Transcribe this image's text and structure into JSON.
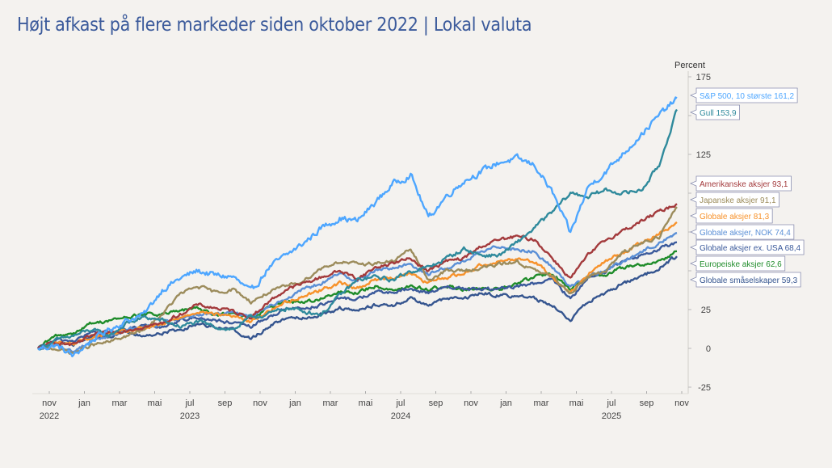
{
  "title": "Højt afkast på flere markeder siden oktober 2022 | Lokal valuta",
  "chart_data": {
    "type": "line",
    "title": "Højt afkast på flere markeder siden oktober 2022 | Lokal valuta",
    "xlabel": "",
    "ylabel": "Percent",
    "ylim": [
      -25,
      175
    ],
    "yticks_visible": [
      175,
      125,
      25,
      0,
      -25
    ],
    "yticks_all": [
      -25,
      0,
      25,
      50,
      75,
      100,
      125,
      150,
      175
    ],
    "x_tick_labels": [
      {
        "month": "nov",
        "year": "2022"
      },
      {
        "month": "jan",
        "year": ""
      },
      {
        "month": "mar",
        "year": ""
      },
      {
        "month": "mai",
        "year": ""
      },
      {
        "month": "jul",
        "year": "2023"
      },
      {
        "month": "sep",
        "year": ""
      },
      {
        "month": "nov",
        "year": ""
      },
      {
        "month": "jan",
        "year": ""
      },
      {
        "month": "mar",
        "year": ""
      },
      {
        "month": "mai",
        "year": ""
      },
      {
        "month": "jul",
        "year": "2024"
      },
      {
        "month": "sep",
        "year": ""
      },
      {
        "month": "nov",
        "year": ""
      },
      {
        "month": "jan",
        "year": ""
      },
      {
        "month": "mar",
        "year": ""
      },
      {
        "month": "mai",
        "year": ""
      },
      {
        "month": "jul",
        "year": "2025"
      },
      {
        "month": "sep",
        "year": ""
      },
      {
        "month": "nov",
        "year": ""
      }
    ],
    "x": [
      "2022-10",
      "2022-11",
      "2022-12",
      "2023-01",
      "2023-02",
      "2023-03",
      "2023-04",
      "2023-05",
      "2023-06",
      "2023-07",
      "2023-08",
      "2023-09",
      "2023-10",
      "2023-11",
      "2023-12",
      "2024-01",
      "2024-02",
      "2024-03",
      "2024-04",
      "2024-05",
      "2024-06",
      "2024-07",
      "2024-08",
      "2024-09",
      "2024-10",
      "2024-11",
      "2024-12",
      "2025-01",
      "2025-02",
      "2025-03",
      "2025-04",
      "2025-05",
      "2025-06",
      "2025-07",
      "2025-08",
      "2025-09",
      "2025-10"
    ],
    "series": [
      {
        "name": "S&P 500, 10 største",
        "end_value": "161,2",
        "color": "#4da6ff",
        "values": [
          0,
          2,
          -5,
          5,
          12,
          18,
          22,
          38,
          45,
          50,
          47,
          46,
          36,
          52,
          60,
          68,
          78,
          84,
          82,
          94,
          106,
          112,
          84,
          98,
          108,
          114,
          120,
          122,
          118,
          100,
          74,
          104,
          114,
          126,
          138,
          150,
          161.2
        ]
      },
      {
        "name": "Gull",
        "end_value": "153,9",
        "color": "#2f8a9c",
        "values": [
          0,
          5,
          8,
          12,
          8,
          16,
          20,
          18,
          14,
          17,
          14,
          12,
          20,
          22,
          26,
          24,
          22,
          34,
          44,
          46,
          44,
          50,
          52,
          58,
          64,
          60,
          60,
          68,
          78,
          88,
          100,
          98,
          102,
          100,
          102,
          118,
          153.9
        ]
      },
      {
        "name": "Amerikanske aksjer",
        "end_value": "93,1",
        "color": "#a33a3c",
        "values": [
          0,
          4,
          2,
          8,
          10,
          12,
          14,
          16,
          22,
          28,
          26,
          24,
          20,
          30,
          38,
          42,
          46,
          50,
          45,
          52,
          55,
          58,
          50,
          56,
          58,
          66,
          70,
          72,
          70,
          58,
          45,
          60,
          70,
          76,
          82,
          88,
          93.1
        ]
      },
      {
        "name": "Japanske aksjer",
        "end_value": "91,1",
        "color": "#9c8c5c",
        "values": [
          0,
          0,
          -3,
          2,
          4,
          8,
          12,
          22,
          35,
          40,
          36,
          38,
          30,
          36,
          40,
          44,
          52,
          56,
          54,
          55,
          56,
          64,
          44,
          50,
          50,
          52,
          54,
          56,
          50,
          46,
          36,
          46,
          50,
          62,
          68,
          72,
          91.1
        ]
      },
      {
        "name": "Globale aksjer",
        "end_value": "81,3",
        "color": "#f7922b",
        "values": [
          0,
          4,
          3,
          7,
          9,
          11,
          13,
          15,
          20,
          24,
          22,
          21,
          17,
          24,
          30,
          34,
          38,
          42,
          39,
          44,
          46,
          48,
          42,
          46,
          48,
          54,
          56,
          58,
          56,
          46,
          36,
          48,
          56,
          62,
          68,
          74,
          81.3
        ]
      },
      {
        "name": "Globale aksjer, NOK",
        "end_value": "74,4",
        "color": "#5a8fd6",
        "values": [
          0,
          2,
          -2,
          5,
          8,
          12,
          14,
          16,
          20,
          22,
          22,
          24,
          20,
          28,
          32,
          38,
          42,
          48,
          44,
          50,
          52,
          54,
          48,
          52,
          56,
          62,
          66,
          64,
          62,
          52,
          40,
          46,
          50,
          56,
          62,
          68,
          74.4
        ]
      },
      {
        "name": "Globale aksjer ex. USA",
        "end_value": "68,4",
        "color": "#3b5a9b",
        "values": [
          0,
          5,
          5,
          10,
          11,
          12,
          14,
          14,
          18,
          20,
          18,
          16,
          14,
          20,
          26,
          26,
          28,
          32,
          32,
          36,
          36,
          38,
          36,
          40,
          38,
          38,
          38,
          40,
          42,
          44,
          32,
          46,
          50,
          56,
          60,
          64,
          68.4
        ]
      },
      {
        "name": "Europeiske aksjer",
        "end_value": "62,6",
        "color": "#1f8c2a",
        "values": [
          0,
          8,
          10,
          16,
          18,
          20,
          22,
          22,
          24,
          26,
          22,
          22,
          20,
          26,
          30,
          30,
          32,
          36,
          36,
          40,
          38,
          40,
          38,
          40,
          38,
          38,
          38,
          42,
          46,
          48,
          38,
          46,
          48,
          52,
          54,
          56,
          62.6
        ]
      },
      {
        "name": "Globale småselskaper",
        "end_value": "59,3",
        "color": "#35558f",
        "values": [
          0,
          4,
          2,
          8,
          8,
          10,
          8,
          10,
          12,
          16,
          14,
          12,
          6,
          14,
          20,
          20,
          22,
          26,
          24,
          28,
          28,
          32,
          28,
          32,
          32,
          36,
          34,
          34,
          32,
          28,
          18,
          30,
          36,
          42,
          46,
          52,
          59.3
        ]
      }
    ],
    "legend": "end-labels-right",
    "grid": false
  }
}
